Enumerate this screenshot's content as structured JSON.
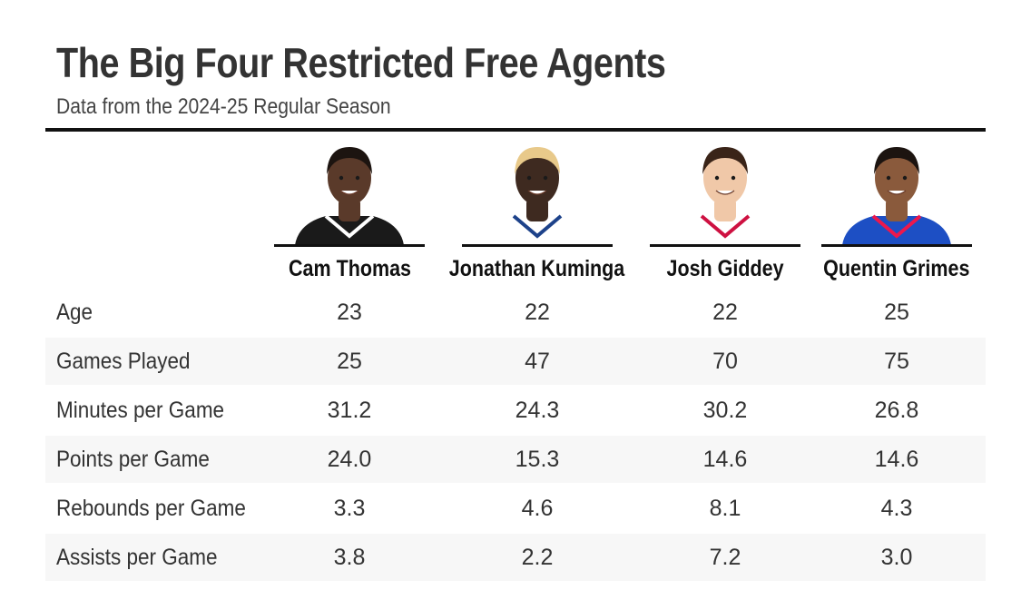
{
  "title": "The Big Four Restricted Free Agents",
  "subtitle": "Data from the 2024-25 Regular Season",
  "players": [
    {
      "name": "Cam Thomas",
      "jersey_color": "#1a1a1a",
      "jersey_trim": "#ffffff",
      "skin": "#5a3a2a",
      "hair": "#1c1410"
    },
    {
      "name": "Jonathan Kuminga",
      "jersey_color": "#ffffff",
      "jersey_trim": "#1d428a",
      "skin": "#3e2a20",
      "hair": "#e8c98a"
    },
    {
      "name": "Josh Giddey",
      "jersey_color": "#ffffff",
      "jersey_trim": "#ce1141",
      "skin": "#f0c8a8",
      "hair": "#3a2418"
    },
    {
      "name": "Quentin Grimes",
      "jersey_color": "#1d4fc4",
      "jersey_trim": "#ed174c",
      "skin": "#8a5a3c",
      "hair": "#1c1410"
    }
  ],
  "chart_data": {
    "type": "table",
    "columns": [
      "Cam Thomas",
      "Jonathan Kuminga",
      "Josh Giddey",
      "Quentin Grimes"
    ],
    "rows": [
      {
        "label": "Age",
        "values": [
          "23",
          "22",
          "22",
          "25"
        ]
      },
      {
        "label": "Games Played",
        "values": [
          "25",
          "47",
          "70",
          "75"
        ]
      },
      {
        "label": "Minutes per Game",
        "values": [
          "31.2",
          "24.3",
          "30.2",
          "26.8"
        ]
      },
      {
        "label": "Points per Game",
        "values": [
          "24.0",
          "15.3",
          "14.6",
          "14.6"
        ]
      },
      {
        "label": "Rebounds per Game",
        "values": [
          "3.3",
          "4.6",
          "8.1",
          "4.3"
        ]
      },
      {
        "label": "Assists per Game",
        "values": [
          "3.8",
          "2.2",
          "7.2",
          "3.0"
        ]
      }
    ]
  }
}
